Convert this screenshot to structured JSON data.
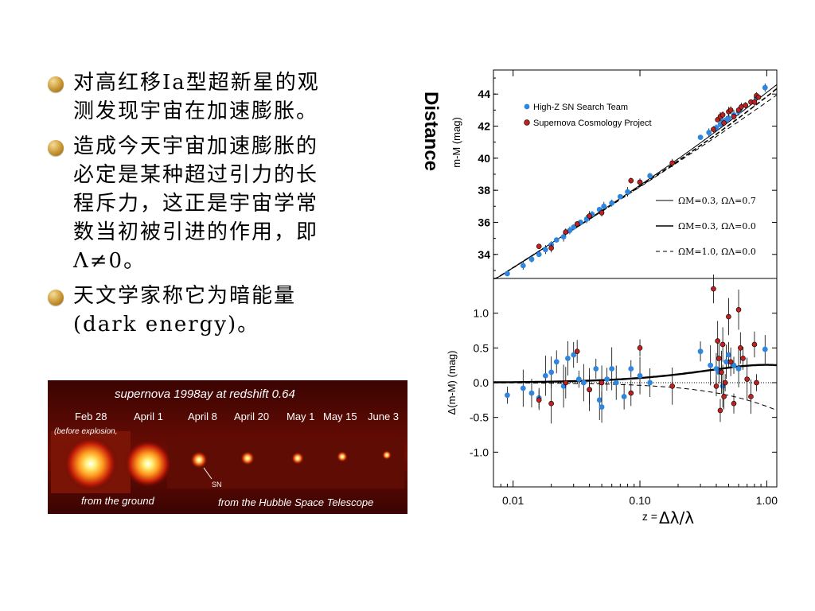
{
  "bullets": [
    {
      "lines": [
        "对高红移Ia型超新星的观",
        "测发现宇宙在加速膨胀。"
      ]
    },
    {
      "lines": [
        "造成今天宇宙加速膨胀的",
        "必定是某种超过引力的长",
        "程斥力，这正是宇宙学常",
        "数当初被引进的作用，即",
        "Λ≠0。"
      ]
    },
    {
      "lines": [
        "天文学家称它为暗能量",
        "(dark energy)。"
      ]
    }
  ],
  "photo": {
    "title": "supernova 1998ay at redshift 0.64",
    "dates": [
      "Feb 28",
      "April 1",
      "April 8",
      "April 20",
      "May 1",
      "May 15",
      "June 3"
    ],
    "note": "(before explosion,",
    "sn_label": "SN",
    "caption_left": "from the ground",
    "caption_right": "from the Hubble Space Telescope"
  },
  "chart_data": [
    {
      "type": "scatter",
      "ylabel": "m-M (mag)",
      "ylabel_annotation": "Distance",
      "xscale": "log",
      "xlim": [
        0.007,
        1.2
      ],
      "ylim": [
        32.5,
        45.5
      ],
      "yticks": [
        "34",
        "36",
        "38",
        "40",
        "42",
        "44"
      ],
      "grid": false,
      "legend_points": [
        "High-Z SN Search Team",
        "Supernova Cosmology Project"
      ],
      "legend_lines": [
        "ΩM=0.3, ΩΛ=0.7",
        "ΩM=0.3, ΩΛ=0.0",
        "ΩM=1.0, ΩΛ=0.0"
      ],
      "series": [
        {
          "name": "High-Z SN Search Team",
          "color": "#2e86de",
          "x": [
            0.009,
            0.012,
            0.014,
            0.016,
            0.018,
            0.02,
            0.022,
            0.025,
            0.028,
            0.03,
            0.034,
            0.038,
            0.042,
            0.048,
            0.052,
            0.06,
            0.07,
            0.08,
            0.1,
            0.12,
            0.3,
            0.35,
            0.4,
            0.43,
            0.45,
            0.48,
            0.5,
            0.55,
            0.6,
            0.62,
            0.83,
            0.97
          ],
          "y": [
            32.8,
            33.3,
            33.7,
            34.0,
            34.3,
            34.6,
            34.9,
            35.1,
            35.5,
            35.7,
            36.0,
            36.2,
            36.5,
            36.8,
            37.0,
            37.2,
            37.6,
            37.9,
            38.5,
            38.9,
            41.3,
            41.6,
            41.9,
            42.1,
            42.3,
            42.4,
            42.5,
            42.7,
            42.9,
            43.1,
            43.8,
            44.4
          ]
        },
        {
          "name": "Supernova Cosmology Project",
          "color": "#c0211f",
          "x": [
            0.016,
            0.02,
            0.026,
            0.032,
            0.04,
            0.05,
            0.085,
            0.1,
            0.18,
            0.38,
            0.41,
            0.43,
            0.45,
            0.46,
            0.5,
            0.52,
            0.55,
            0.6,
            0.63,
            0.68,
            0.75,
            0.8,
            0.83,
            0.86
          ],
          "y": [
            34.5,
            34.4,
            35.4,
            35.9,
            36.4,
            36.6,
            38.6,
            38.5,
            39.7,
            41.8,
            42.4,
            42.6,
            42.7,
            42.2,
            42.9,
            43.0,
            42.6,
            43.0,
            43.2,
            43.3,
            43.5,
            43.5,
            43.9,
            43.8
          ]
        }
      ]
    },
    {
      "type": "scatter",
      "ylabel": "Δ(m-M) (mag)",
      "xlabel": "z =",
      "xlabel_annotation": "Δλ/λ",
      "xscale": "log",
      "xlim": [
        0.007,
        1.2
      ],
      "ylim": [
        -1.5,
        1.5
      ],
      "xticks": [
        "0.01",
        "0.10",
        "1.00"
      ],
      "yticks": [
        "1.0",
        "0.5",
        "0.0",
        "-0.5",
        "-1.0"
      ],
      "grid": false,
      "series": [
        {
          "name": "High-Z SN Search Team",
          "color": "#2e86de",
          "x": [
            0.009,
            0.012,
            0.014,
            0.016,
            0.018,
            0.02,
            0.022,
            0.025,
            0.027,
            0.03,
            0.033,
            0.036,
            0.04,
            0.045,
            0.048,
            0.05,
            0.055,
            0.06,
            0.065,
            0.075,
            0.085,
            0.1,
            0.12,
            0.3,
            0.36,
            0.4,
            0.42,
            0.45,
            0.48,
            0.5,
            0.55,
            0.6,
            0.97
          ],
          "y": [
            -0.18,
            -0.08,
            -0.15,
            -0.22,
            0.1,
            0.15,
            0.3,
            -0.05,
            0.35,
            0.4,
            0.05,
            0.0,
            -0.1,
            0.2,
            -0.25,
            -0.35,
            0.05,
            0.2,
            0.0,
            -0.2,
            0.2,
            0.1,
            0.0,
            0.45,
            0.25,
            0.2,
            0.15,
            -0.05,
            0.3,
            0.4,
            0.25,
            0.2,
            0.48
          ]
        },
        {
          "name": "Supernova Cosmology Project",
          "color": "#c0211f",
          "x": [
            0.016,
            0.02,
            0.026,
            0.032,
            0.04,
            0.05,
            0.085,
            0.1,
            0.18,
            0.38,
            0.4,
            0.41,
            0.42,
            0.43,
            0.44,
            0.45,
            0.46,
            0.47,
            0.5,
            0.52,
            0.55,
            0.6,
            0.62,
            0.65,
            0.7,
            0.75,
            0.8,
            0.83
          ],
          "y": [
            -0.25,
            -0.3,
            0.0,
            0.45,
            -0.1,
            0.0,
            -0.15,
            0.5,
            -0.05,
            1.35,
            -0.05,
            0.6,
            0.35,
            -0.4,
            0.15,
            0.55,
            -0.2,
            0.0,
            0.95,
            0.3,
            -0.3,
            1.05,
            0.5,
            0.35,
            0.05,
            -0.2,
            0.55,
            0.0
          ]
        }
      ]
    }
  ]
}
